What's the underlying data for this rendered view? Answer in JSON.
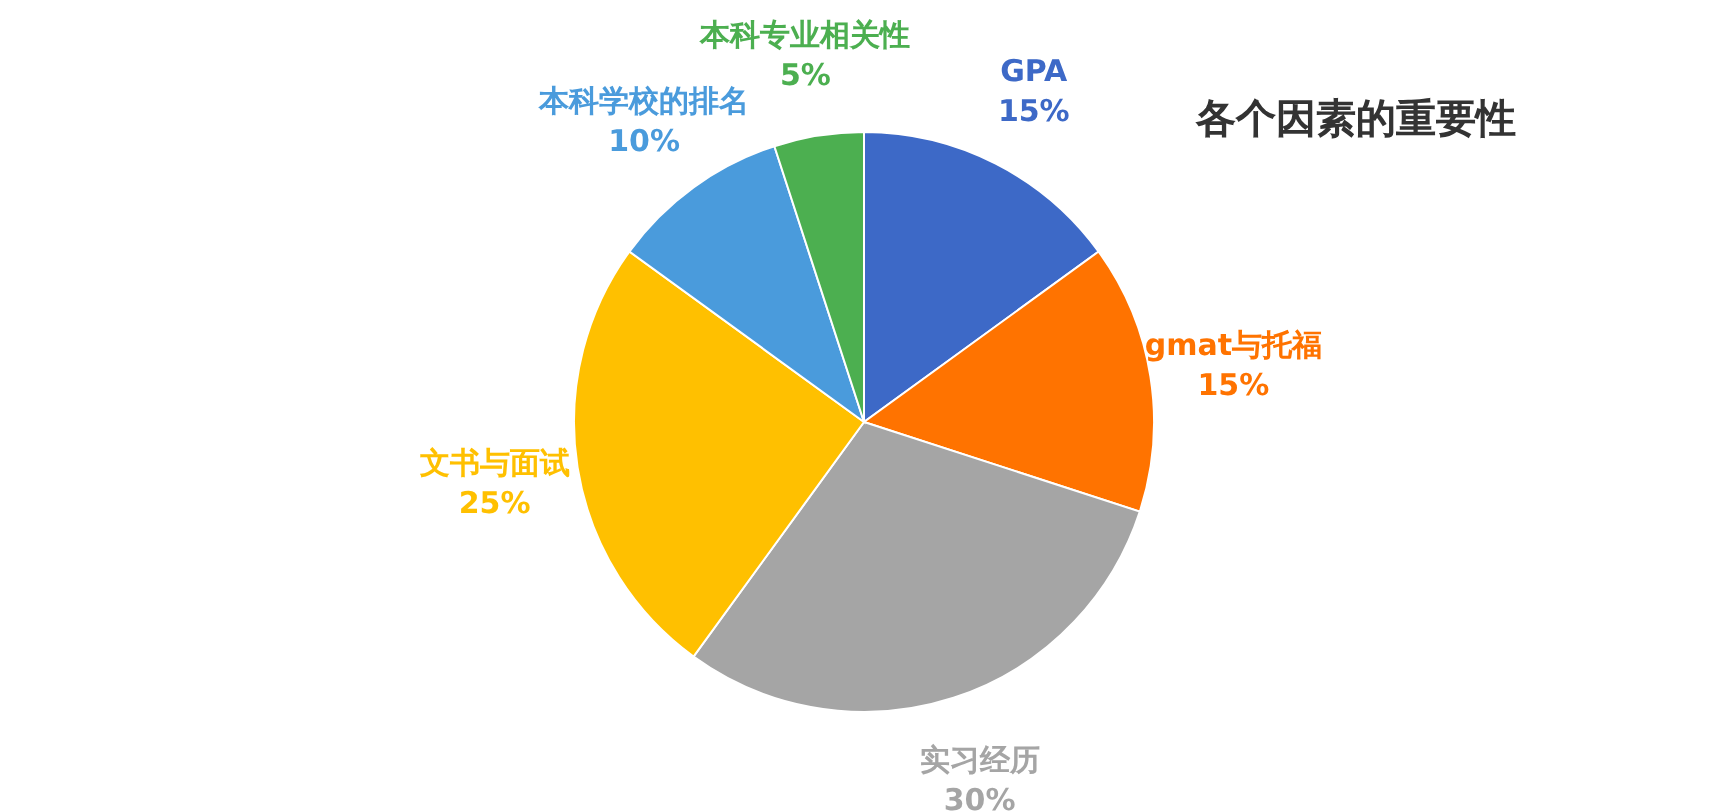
{
  "chart_data": {
    "type": "pie",
    "title": "各个因素的重要性",
    "categories": [
      "GPA",
      "gmat与托福",
      "实习经历",
      "文书与面试",
      "本科学校的排名",
      "本科专业相关性"
    ],
    "values": [
      15,
      15,
      30,
      25,
      10,
      5
    ],
    "value_labels": [
      "15%",
      "15%",
      "30%",
      "25%",
      "10%",
      "5%"
    ],
    "colors": [
      "#3d69c7",
      "#ff7300",
      "#a5a5a5",
      "#ffc000",
      "#4a9bdc",
      "#4caf50"
    ]
  }
}
